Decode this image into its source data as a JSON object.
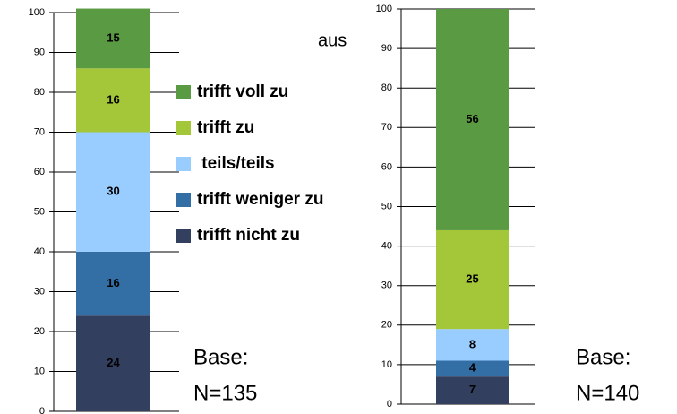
{
  "fragments": [
    "aus"
  ],
  "chart_data": [
    {
      "type": "bar",
      "stacked": true,
      "series": [
        {
          "name": "trifft nicht zu",
          "color": "#333f5f",
          "values": [
            24
          ]
        },
        {
          "name": "trifft weniger zu",
          "color": "#336ea5",
          "values": [
            16
          ]
        },
        {
          "name": " teils/teils",
          "color": "#99ccff",
          "values": [
            30
          ]
        },
        {
          "name": "trifft zu",
          "color": "#a4c639",
          "values": [
            16
          ]
        },
        {
          "name": "trifft voll zu",
          "color": "#5a9a43",
          "values": [
            15
          ]
        }
      ],
      "ylim": [
        0,
        100
      ],
      "yticks": [
        0,
        10,
        20,
        30,
        40,
        50,
        60,
        70,
        80,
        90,
        100
      ],
      "grid": true,
      "annotations": [
        "Base:",
        "N=135"
      ]
    },
    {
      "type": "bar",
      "stacked": true,
      "series": [
        {
          "color": "#333f5f",
          "values": [
            7
          ]
        },
        {
          "color": "#336ea5",
          "values": [
            4
          ]
        },
        {
          "color": "#99ccff",
          "values": [
            8
          ]
        },
        {
          "color": "#a4c639",
          "values": [
            25
          ]
        },
        {
          "color": "#5a9a43",
          "values": [
            56
          ]
        }
      ],
      "ylim": [
        0,
        100
      ],
      "yticks": [
        0,
        10,
        20,
        30,
        40,
        50,
        60,
        70,
        80,
        90,
        100
      ],
      "grid": true,
      "annotations": [
        "Base:",
        "N=140"
      ]
    }
  ]
}
